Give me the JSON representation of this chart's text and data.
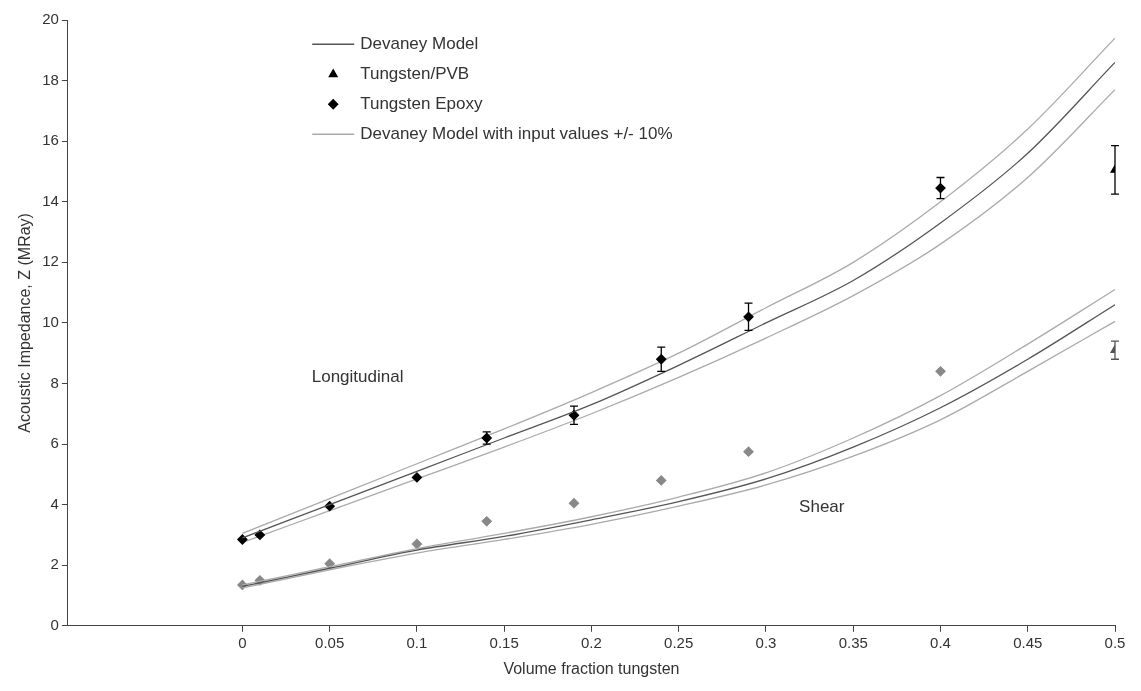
{
  "chart_data": {
    "type": "scatter",
    "xlabel": "Volume fraction tungsten",
    "ylabel": "Acoustic Impedance, Z (MRay)",
    "xlim": [
      -0.1,
      0.5
    ],
    "xticks": [
      0,
      0.05,
      0.1,
      0.15,
      0.2,
      0.25,
      0.3,
      0.35,
      0.4,
      0.45,
      0.5
    ],
    "ylim": [
      0,
      20
    ],
    "yticks": [
      0,
      2,
      4,
      6,
      8,
      10,
      12,
      14,
      16,
      18,
      20
    ],
    "grid": false,
    "legend": "top left",
    "annotations": [
      "Longitudinal",
      "Shear"
    ],
    "series": [
      {
        "name": "Devaney Model",
        "type": "line",
        "color": "#555555",
        "marker": "none",
        "x": [
          0,
          0.05,
          0.1,
          0.15,
          0.2,
          0.25,
          0.3,
          0.35,
          0.4,
          0.45,
          0.5
        ],
        "values": [
          2.9,
          4.0,
          5.1,
          6.2,
          7.3,
          8.6,
          10.0,
          11.4,
          13.3,
          15.6,
          18.6
        ]
      },
      {
        "name": "Tungsten/PVB",
        "type": "scatter",
        "color": "#000000",
        "marker": "triangle",
        "x": [
          0.5
        ],
        "values": [
          15.05
        ],
        "errors": [
          0.8
        ]
      },
      {
        "name": "Tungsten Epoxy",
        "type": "scatter",
        "color": "#000000",
        "marker": "diamond",
        "x": [
          0,
          0.01,
          0.05,
          0.1,
          0.14,
          0.19,
          0.24,
          0.29,
          0.4
        ],
        "values": [
          2.85,
          3.0,
          3.95,
          4.9,
          6.2,
          6.95,
          8.8,
          10.2,
          14.45
        ],
        "errors": [
          null,
          null,
          null,
          null,
          0.2,
          0.3,
          0.4,
          0.45,
          0.35
        ]
      },
      {
        "name": "Devaney Model with input values +/- 10%",
        "type": "line",
        "color": "#aaaaaa",
        "marker": "none",
        "x": [
          0,
          0.05,
          0.1,
          0.15,
          0.2,
          0.25,
          0.3,
          0.35,
          0.4,
          0.45,
          0.5
        ],
        "values": [
          3.05,
          4.2,
          5.35,
          6.5,
          7.7,
          9.0,
          10.5,
          12.0,
          14.0,
          16.4,
          19.4
        ]
      },
      {
        "type": "line",
        "color": "#aaaaaa",
        "marker": "none",
        "x": [
          0,
          0.05,
          0.1,
          0.15,
          0.2,
          0.25,
          0.3,
          0.35,
          0.4,
          0.45,
          0.5
        ],
        "values": [
          2.75,
          3.8,
          4.85,
          5.9,
          7.0,
          8.2,
          9.5,
          10.9,
          12.6,
          14.8,
          17.7
        ]
      },
      {
        "type": "line",
        "color": "#555555",
        "marker": "none",
        "x": [
          0,
          0.05,
          0.1,
          0.15,
          0.2,
          0.25,
          0.3,
          0.35,
          0.4,
          0.45,
          0.5
        ],
        "values": [
          1.3,
          1.9,
          2.5,
          2.95,
          3.5,
          4.1,
          4.85,
          5.9,
          7.2,
          8.8,
          10.6
        ]
      },
      {
        "type": "line",
        "color": "#aaaaaa",
        "marker": "none",
        "x": [
          0,
          0.05,
          0.1,
          0.15,
          0.2,
          0.25,
          0.3,
          0.35,
          0.4,
          0.45,
          0.5
        ],
        "values": [
          1.35,
          1.95,
          2.55,
          3.05,
          3.6,
          4.25,
          5.05,
          6.2,
          7.6,
          9.3,
          11.1
        ]
      },
      {
        "type": "line",
        "color": "#aaaaaa",
        "marker": "none",
        "x": [
          0,
          0.05,
          0.1,
          0.15,
          0.2,
          0.25,
          0.3,
          0.35,
          0.4,
          0.45,
          0.5
        ],
        "values": [
          1.25,
          1.85,
          2.4,
          2.85,
          3.35,
          3.95,
          4.65,
          5.6,
          6.8,
          8.4,
          10.05
        ]
      },
      {
        "type": "scatter",
        "color": "#888888",
        "marker": "diamond",
        "x": [
          0,
          0.01,
          0.05,
          0.1,
          0.14,
          0.19,
          0.24,
          0.29,
          0.4
        ],
        "values": [
          1.35,
          1.5,
          2.05,
          2.7,
          3.45,
          4.05,
          4.8,
          5.75,
          8.4
        ]
      },
      {
        "type": "scatter",
        "color": "#555555",
        "marker": "triangle",
        "x": [
          0.5
        ],
        "values": [
          9.1
        ],
        "errors": [
          0.3
        ]
      }
    ]
  }
}
